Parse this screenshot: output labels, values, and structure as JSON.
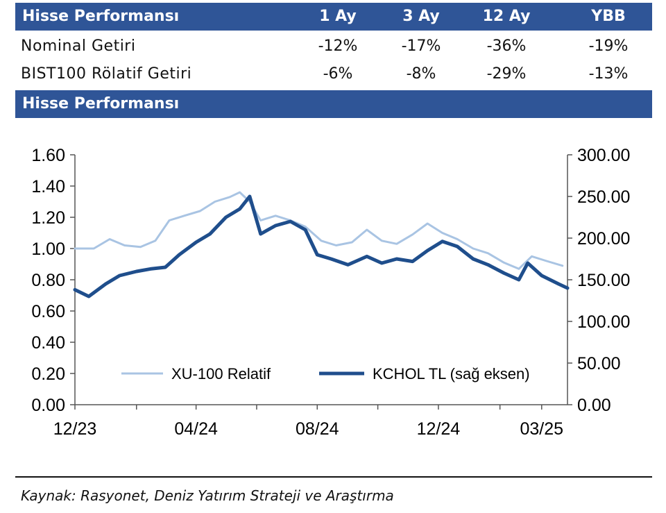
{
  "table": {
    "header": {
      "title": "Hisse Performansı",
      "columns": [
        "1 Ay",
        "3 Ay",
        "12 Ay",
        "YBB"
      ]
    },
    "rows": [
      {
        "label": "Nominal Getiri",
        "values": [
          "-12%",
          "-17%",
          "-36%",
          "-19%"
        ]
      },
      {
        "label": "BIST100 Rölatif Getiri",
        "values": [
          "-6%",
          "-8%",
          "-29%",
          "-13%"
        ]
      }
    ]
  },
  "chart_section_title": "Hisse Performansı",
  "source": "Kaynak: Rasyonet, Deniz Yatırım Strateji ve Araştırma",
  "chart_data": {
    "type": "line",
    "x_tick_labels": [
      "12/23",
      "04/24",
      "08/24",
      "12/24",
      "03/25"
    ],
    "x_range": [
      "2023-12-01",
      "2025-04-10"
    ],
    "y_left": {
      "ticks": [
        "1.60",
        "1.40",
        "1.20",
        "1.00",
        "0.80",
        "0.60",
        "0.40",
        "0.20",
        "0.00"
      ],
      "range": [
        0,
        1.6
      ]
    },
    "y_right": {
      "ticks": [
        "300.00",
        "250.00",
        "200.00",
        "150.00",
        "100.00",
        "50.00",
        "0.00"
      ],
      "range": [
        0,
        300
      ]
    },
    "grid": false,
    "legend_position": "bottom-right",
    "series": [
      {
        "name": "XU-100 Relatif",
        "axis": "left",
        "color": "#a9c4e3",
        "x": [
          "2023-12-01",
          "2023-12-20",
          "2024-01-05",
          "2024-01-20",
          "2024-02-05",
          "2024-02-20",
          "2024-03-05",
          "2024-03-20",
          "2024-04-05",
          "2024-04-20",
          "2024-05-05",
          "2024-05-15",
          "2024-05-25",
          "2024-06-05",
          "2024-06-20",
          "2024-07-05",
          "2024-07-20",
          "2024-08-05",
          "2024-08-20",
          "2024-09-05",
          "2024-09-20",
          "2024-10-05",
          "2024-10-20",
          "2024-11-05",
          "2024-11-20",
          "2024-12-05",
          "2024-12-20",
          "2025-01-05",
          "2025-01-20",
          "2025-02-05",
          "2025-02-20",
          "2025-03-05",
          "2025-03-20",
          "2025-04-05"
        ],
        "values": [
          1.0,
          1.0,
          1.06,
          1.02,
          1.01,
          1.05,
          1.18,
          1.21,
          1.24,
          1.3,
          1.33,
          1.36,
          1.3,
          1.18,
          1.21,
          1.18,
          1.14,
          1.05,
          1.02,
          1.04,
          1.12,
          1.05,
          1.03,
          1.09,
          1.16,
          1.1,
          1.06,
          1.0,
          0.97,
          0.91,
          0.87,
          0.95,
          0.92,
          0.89
        ]
      },
      {
        "name": "KCHOL TL (sağ eksen)",
        "axis": "right",
        "color": "#1f4e8c",
        "x": [
          "2023-12-01",
          "2023-12-15",
          "2024-01-01",
          "2024-01-15",
          "2024-02-01",
          "2024-02-15",
          "2024-03-01",
          "2024-03-15",
          "2024-04-01",
          "2024-04-15",
          "2024-05-01",
          "2024-05-15",
          "2024-05-25",
          "2024-06-05",
          "2024-06-20",
          "2024-07-05",
          "2024-07-20",
          "2024-08-01",
          "2024-08-15",
          "2024-09-01",
          "2024-09-20",
          "2024-10-05",
          "2024-10-20",
          "2024-11-05",
          "2024-11-20",
          "2024-12-05",
          "2024-12-20",
          "2025-01-05",
          "2025-01-20",
          "2025-02-05",
          "2025-02-20",
          "2025-03-01",
          "2025-03-15",
          "2025-04-01",
          "2025-04-10"
        ],
        "values": [
          138,
          130,
          145,
          155,
          160,
          163,
          165,
          180,
          195,
          205,
          225,
          235,
          250,
          205,
          215,
          220,
          210,
          180,
          175,
          168,
          178,
          170,
          175,
          172,
          185,
          196,
          190,
          175,
          168,
          158,
          150,
          170,
          155,
          145,
          140
        ]
      }
    ]
  }
}
